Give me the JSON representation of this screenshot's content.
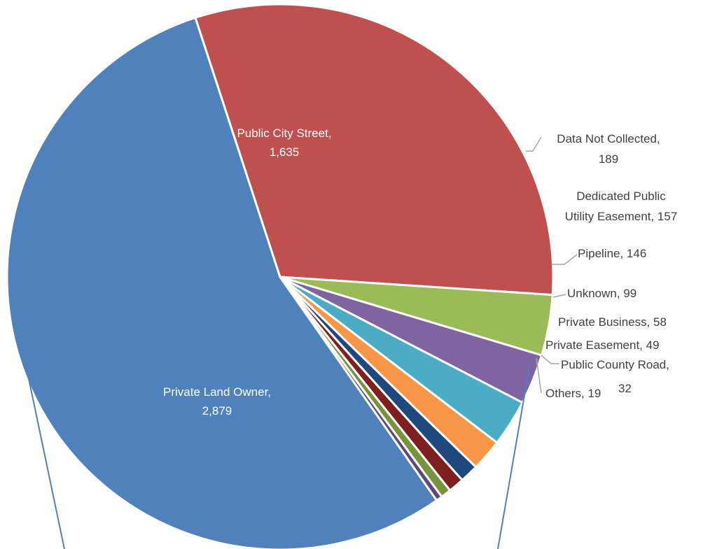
{
  "chart_data": {
    "type": "pie",
    "title": "",
    "slices": [
      {
        "label": "Private Land Owner",
        "value": 2879,
        "value_text": "2,879",
        "color": "#4F81BD"
      },
      {
        "label": "Public City Street",
        "value": 1635,
        "value_text": "1,635",
        "color": "#C0504D"
      },
      {
        "label": "Data Not Collected",
        "value": 189,
        "value_text": "189",
        "color": "#9BBB59"
      },
      {
        "label": "Dedicated Public Utility Easement",
        "value": 157,
        "value_text": "157",
        "color": "#8064A2"
      },
      {
        "label": "Pipeline",
        "value": 146,
        "value_text": "146",
        "color": "#4BACC6"
      },
      {
        "label": "Unknown",
        "value": 99,
        "value_text": "99",
        "color": "#F79646"
      },
      {
        "label": "Private Business",
        "value": 58,
        "value_text": "58",
        "color": "#1F497D"
      },
      {
        "label": "Private Easement",
        "value": 49,
        "value_text": "49",
        "color": "#7F1F1F"
      },
      {
        "label": "Public County Road",
        "value": 32,
        "value_text": "32",
        "color": "#77933C"
      },
      {
        "label": "Others",
        "value": 19,
        "value_text": "19",
        "color": "#5F497A"
      }
    ],
    "labels": [
      {
        "lines": [
          "Private Land Owner,",
          "2,879"
        ]
      },
      {
        "lines": [
          "Public City Street,",
          "1,635"
        ]
      },
      {
        "lines": [
          "Data Not Collected,",
          "189"
        ]
      },
      {
        "lines": [
          "Dedicated Public",
          "Utility Easement, 157"
        ]
      },
      {
        "lines": [
          "Pipeline, 146"
        ]
      },
      {
        "lines": [
          "Unknown, 99"
        ]
      },
      {
        "lines": [
          "Private Business, 58"
        ]
      },
      {
        "lines": [
          "Private Easement, 49"
        ]
      },
      {
        "lines": [
          "Public County Road,",
          "32"
        ]
      },
      {
        "lines": [
          "Others, 19"
        ]
      }
    ],
    "legend": "none",
    "callout_line_color": "#4F81BD"
  }
}
